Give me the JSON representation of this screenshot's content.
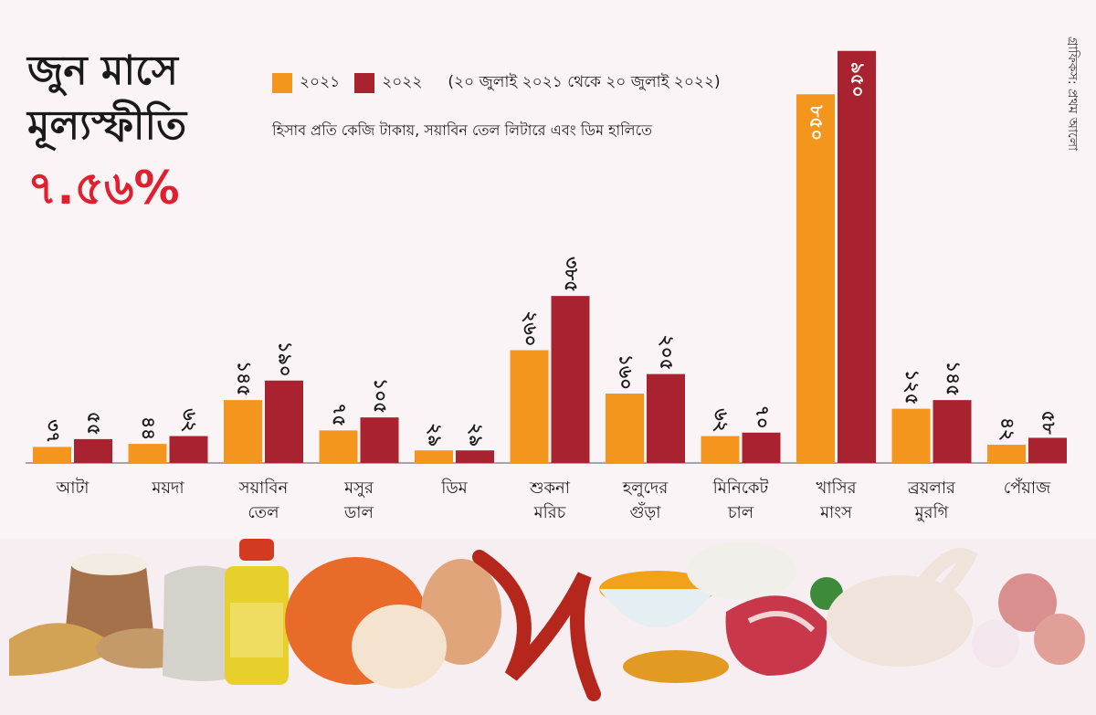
{
  "headline": {
    "line1": "জুন মাসে",
    "line2": "মূল্যস্ফীতি",
    "percentage": "৭.৫৬%"
  },
  "legend": {
    "item_2021": "২০২১",
    "item_2022": "২০২২",
    "period": "(২০ জুলাই ২০২১ থেকে ২০ জুলাই ২০২২)"
  },
  "subtitle": "হিসাব প্রতি কেজি টাকায়, সয়াবিন তেল লিটারে এবং ডিম হালিতে",
  "credit": "গ্রাফিকস: প্রথম আলো",
  "colors": {
    "series_2021": "#f4961e",
    "series_2022": "#a8232f",
    "headline_red": "#e0202e",
    "baseline": "#8a8a8a"
  },
  "chart_data": {
    "type": "bar",
    "title": "",
    "xlabel": "",
    "ylabel": "",
    "ylim": [
      0,
      1000
    ],
    "categories": [
      [
        "আটা"
      ],
      [
        "ময়দা"
      ],
      [
        "সয়াবিন",
        "তেল"
      ],
      [
        "মসুর",
        "ডাল"
      ],
      [
        "ডিম"
      ],
      [
        "শুকনা",
        "মরিচ"
      ],
      [
        "হলুদের",
        "গুঁড়া"
      ],
      [
        "মিনিকেট",
        "চাল"
      ],
      [
        "খাসির",
        "মাংস"
      ],
      [
        "ব্রয়লার",
        "মুরগি"
      ],
      [
        "পেঁয়াজ"
      ]
    ],
    "series": [
      {
        "name": "২০২১",
        "values": [
          37,
          44,
          145,
          75,
          29,
          260,
          160,
          62,
          850,
          125,
          42
        ],
        "labels": [
          "৩৭",
          "৪৪",
          "১৪৫",
          "৭৫",
          "২৯",
          "২৬০",
          "১৬০",
          "৬২",
          "৮৫০",
          "১২৫",
          "৪২"
        ]
      },
      {
        "name": "২০২২",
        "values": [
          55,
          62,
          190,
          105,
          29,
          385,
          205,
          70,
          950,
          145,
          58
        ],
        "labels": [
          "৫৫",
          "৬২",
          "১৯০",
          "১০৫",
          "২৯",
          "৩৮৫",
          "২০৫",
          "৭০",
          "৯৫০",
          "১৪৫",
          "৫৮"
        ]
      }
    ],
    "grid": false,
    "legend_position": "top"
  },
  "photos": [
    "flour-sack-and-wheat",
    "flour-sack",
    "soybean-oil-bottle",
    "red-lentils",
    "eggs",
    "dried-red-chilies",
    "turmeric-powder",
    "miniket-rice",
    "mutton",
    "broiler-chicken",
    "onions"
  ]
}
